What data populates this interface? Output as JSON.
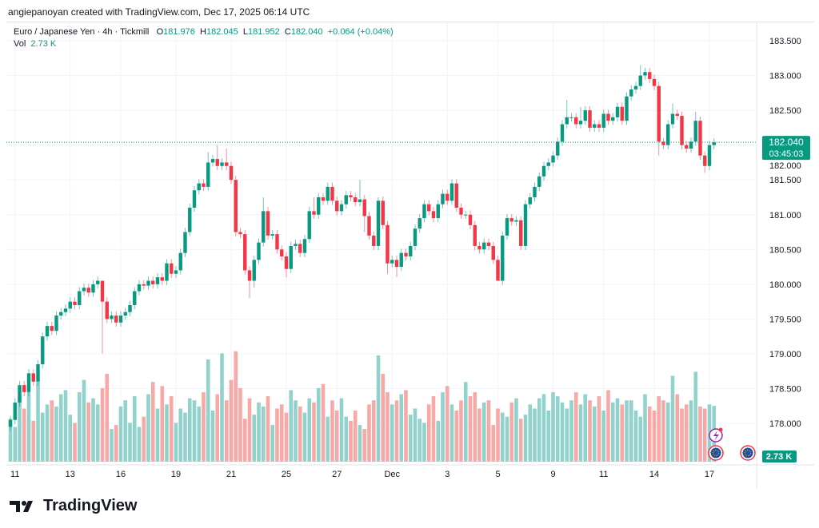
{
  "credit": "angiepanoyan created with TradingView.com, Dec 17, 2025 06:14 UTC",
  "legend": {
    "symbol": "Euro / Japanese Yen · 4h · Tickmill",
    "o_label": "O",
    "o": "181.976",
    "h_label": "H",
    "h": "182.045",
    "l_label": "L",
    "l": "181.952",
    "c_label": "C",
    "c": "182.040",
    "change": "+0.064 (+0.04%)",
    "vol_label": "Vol",
    "vol": "2.73 K"
  },
  "price_tag": {
    "price": "182.040",
    "countdown": "03:45:03"
  },
  "volume_tag": "2.73 K",
  "brand": "TradingView",
  "colors": {
    "up": "#089981",
    "down": "#f23645",
    "vol_up": "#92d2cc",
    "vol_down": "#f7a9a7",
    "grid": "#f0f3fa"
  },
  "icons": [
    "lightning-event-icon",
    "eu-flag-icon",
    "eu-flag-icon"
  ],
  "chart_data": {
    "type": "candlestick",
    "title": "Euro / Japanese Yen · 4h · Tickmill",
    "y_ticks": [
      "183.500",
      "183.000",
      "182.500",
      "182.000",
      "181.500",
      "181.000",
      "180.500",
      "180.000",
      "179.500",
      "179.000",
      "178.500",
      "178.000"
    ],
    "ylim": [
      177.6,
      183.75
    ],
    "x_ticks": [
      {
        "label": "11",
        "index": 1
      },
      {
        "label": "13",
        "index": 13
      },
      {
        "label": "16",
        "index": 24
      },
      {
        "label": "19",
        "index": 36
      },
      {
        "label": "21",
        "index": 48
      },
      {
        "label": "25",
        "index": 60
      },
      {
        "label": "27",
        "index": 71
      },
      {
        "label": "Dec",
        "index": 83
      },
      {
        "label": "3",
        "index": 95
      },
      {
        "label": "5",
        "index": 106
      },
      {
        "label": "9",
        "index": 118
      },
      {
        "label": "11",
        "index": 129
      },
      {
        "label": "14",
        "index": 140
      },
      {
        "label": "17",
        "index": 152
      }
    ],
    "first_open": 177.95,
    "close": [
      178.05,
      178.3,
      178.55,
      178.45,
      178.72,
      178.6,
      178.85,
      179.25,
      179.4,
      179.33,
      179.55,
      179.6,
      179.65,
      179.75,
      179.7,
      179.9,
      179.95,
      179.88,
      180.0,
      180.05,
      179.75,
      179.5,
      179.55,
      179.45,
      179.55,
      179.6,
      179.7,
      179.9,
      180.0,
      179.98,
      180.05,
      180.0,
      180.1,
      180.05,
      180.3,
      180.15,
      180.2,
      180.45,
      180.75,
      181.1,
      181.35,
      181.45,
      181.4,
      181.75,
      181.8,
      181.7,
      181.75,
      181.7,
      181.5,
      180.75,
      180.72,
      180.2,
      180.05,
      180.35,
      180.6,
      181.05,
      180.7,
      180.72,
      180.5,
      180.4,
      180.22,
      180.55,
      180.58,
      180.45,
      180.65,
      181.05,
      181.0,
      181.25,
      181.2,
      181.4,
      181.2,
      181.05,
      181.15,
      181.28,
      181.25,
      181.18,
      181.22,
      180.98,
      180.7,
      180.55,
      181.2,
      180.85,
      180.3,
      180.35,
      180.25,
      180.45,
      180.4,
      180.55,
      180.8,
      180.95,
      181.15,
      181.05,
      180.95,
      181.15,
      181.3,
      181.2,
      181.45,
      181.1,
      181.0,
      181.0,
      180.85,
      180.55,
      180.5,
      180.6,
      180.55,
      180.35,
      180.05,
      180.7,
      180.95,
      180.9,
      180.92,
      180.55,
      181.15,
      181.25,
      181.4,
      181.55,
      181.7,
      181.75,
      181.85,
      182.05,
      182.3,
      182.4,
      182.4,
      182.3,
      182.35,
      182.5,
      182.25,
      182.3,
      182.25,
      182.45,
      182.35,
      182.4,
      182.55,
      182.35,
      182.7,
      182.8,
      182.85,
      183.0,
      183.05,
      182.95,
      182.85,
      182.05,
      182.0,
      182.3,
      182.45,
      182.42,
      182.0,
      181.95,
      182.05,
      182.35,
      181.85,
      181.7,
      182.0,
      182.04
    ],
    "default_wick": 0.06,
    "high_overrides": {
      "20": 180.05,
      "43": 181.9,
      "45": 182.0,
      "47": 181.95,
      "55": 181.25,
      "66": 181.25,
      "76": 181.5,
      "80": 181.25,
      "121": 182.65,
      "124": 182.55,
      "137": 183.15,
      "142": 182.1,
      "144": 182.6,
      "149": 182.48
    },
    "low_overrides": {
      "20": 179.0,
      "52": 179.8,
      "53": 179.95,
      "60": 180.1,
      "77": 180.75,
      "82": 180.15,
      "84": 180.1,
      "106": 180.1,
      "141": 181.85,
      "151": 181.6
    },
    "volume_k": [
      2.1,
      1.7,
      3.2,
      2.6,
      3.4,
      2.0,
      3.9,
      2.4,
      2.8,
      3.0,
      2.7,
      3.3,
      3.5,
      2.3,
      1.9,
      3.4,
      4.0,
      2.9,
      3.1,
      2.8,
      3.6,
      4.3,
      1.6,
      1.8,
      2.7,
      3.0,
      1.9,
      3.2,
      1.7,
      2.2,
      3.3,
      3.9,
      2.6,
      3.7,
      2.8,
      3.2,
      1.9,
      2.6,
      2.4,
      3.1,
      3.0,
      2.7,
      3.4,
      5.0,
      2.5,
      3.3,
      5.3,
      3.0,
      4.0,
      5.4,
      3.6,
      2.1,
      3.1,
      2.3,
      2.9,
      2.7,
      3.2,
      1.8,
      2.6,
      2.8,
      2.4,
      3.5,
      3.0,
      2.7,
      2.4,
      3.1,
      2.9,
      3.6,
      3.8,
      2.2,
      3.0,
      2.5,
      3.1,
      2.2,
      2.0,
      2.5,
      1.8,
      1.6,
      2.8,
      3.0,
      5.2,
      4.3,
      3.4,
      2.8,
      3.0,
      3.3,
      3.5,
      2.3,
      2.6,
      2.1,
      1.9,
      2.8,
      3.2,
      2.0,
      3.4,
      3.7,
      2.8,
      2.5,
      3.0,
      3.9,
      3.2,
      3.4,
      2.6,
      2.9,
      3.0,
      1.8,
      2.6,
      2.4,
      2.2,
      2.9,
      3.1,
      2.1,
      2.3,
      2.8,
      2.6,
      3.1,
      3.3,
      2.5,
      3.4,
      3.2,
      2.9,
      2.6,
      3.0,
      3.4,
      2.8,
      3.3,
      3.0,
      2.7,
      3.2,
      2.5,
      3.5,
      2.9,
      3.1,
      2.8,
      3.0,
      3.0,
      2.5,
      2.2,
      3.3,
      2.7,
      2.5,
      3.2,
      3.0,
      2.9,
      4.2,
      3.3,
      2.6,
      2.8,
      3.0,
      4.4,
      2.7,
      2.6,
      2.8,
      2.73
    ],
    "last_price": 182.04
  }
}
